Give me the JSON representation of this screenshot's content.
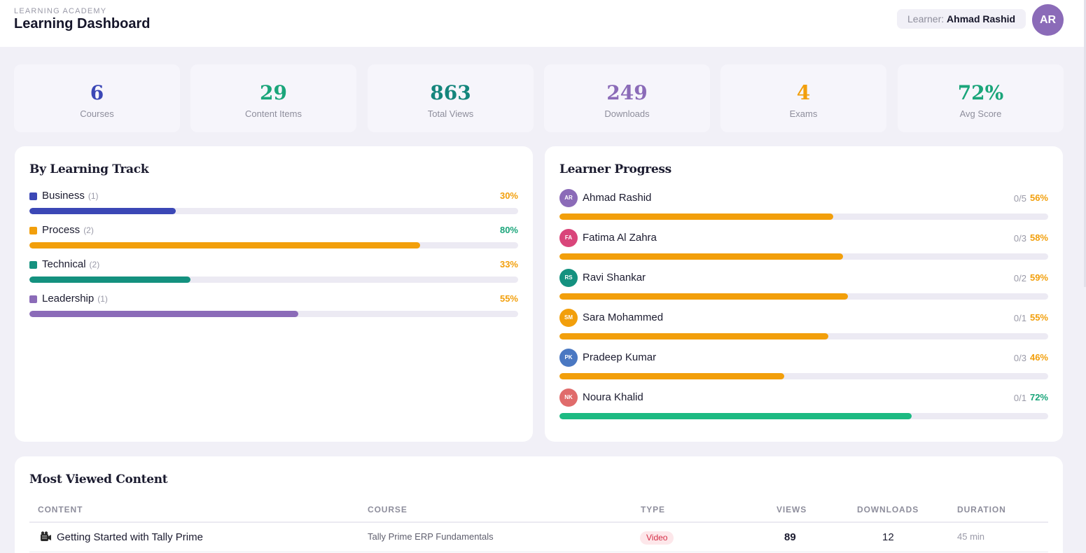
{
  "header": {
    "subtitle": "LEARNING ACADEMY",
    "title": "Learning Dashboard",
    "learner_label": "Learner:",
    "learner_name": "Ahmad Rashid",
    "avatar_initials": "AR"
  },
  "stats": [
    {
      "value": "6",
      "label": "Courses",
      "color": "#3b47b6"
    },
    {
      "value": "29",
      "label": "Content Items",
      "color": "#1aa57a"
    },
    {
      "value": "863",
      "label": "Total Views",
      "color": "#14857c"
    },
    {
      "value": "249",
      "label": "Downloads",
      "color": "#8b6bb8"
    },
    {
      "value": "4",
      "label": "Exams",
      "color": "#f29f0b"
    },
    {
      "value": "72%",
      "label": "Avg Score",
      "color": "#1aa57a"
    }
  ],
  "by_track": {
    "title": "By Learning Track",
    "tracks": [
      {
        "name": "Business",
        "count": "(1)",
        "pct_label": "30%",
        "fraction": 0.3,
        "color": "#3b47b6",
        "pct_color": "#f29f0b"
      },
      {
        "name": "Process",
        "count": "(2)",
        "pct_label": "80%",
        "fraction": 0.8,
        "color": "#f29f0b",
        "pct_color": "#1aa57a"
      },
      {
        "name": "Technical",
        "count": "(2)",
        "pct_label": "33%",
        "fraction": 0.33,
        "color": "#14917f",
        "pct_color": "#f29f0b"
      },
      {
        "name": "Leadership",
        "count": "(1)",
        "pct_label": "55%",
        "fraction": 0.55,
        "color": "#8b6bb8",
        "pct_color": "#f29f0b"
      }
    ]
  },
  "learner_progress": {
    "title": "Learner Progress",
    "learners": [
      {
        "initials": "AR",
        "name": "Ahmad Rashid",
        "fraction_label": "0/5",
        "pct_label": "56%",
        "fraction": 0.56,
        "avatar_color": "#8b6bb8",
        "bar_color": "#f29f0b",
        "pct_color": "#f29f0b"
      },
      {
        "initials": "FA",
        "name": "Fatima Al Zahra",
        "fraction_label": "0/3",
        "pct_label": "58%",
        "fraction": 0.58,
        "avatar_color": "#d9457a",
        "bar_color": "#f29f0b",
        "pct_color": "#f29f0b"
      },
      {
        "initials": "RS",
        "name": "Ravi Shankar",
        "fraction_label": "0/2",
        "pct_label": "59%",
        "fraction": 0.59,
        "avatar_color": "#14917f",
        "bar_color": "#f29f0b",
        "pct_color": "#f29f0b"
      },
      {
        "initials": "SM",
        "name": "Sara Mohammed",
        "fraction_label": "0/1",
        "pct_label": "55%",
        "fraction": 0.55,
        "avatar_color": "#f29f0b",
        "bar_color": "#f29f0b",
        "pct_color": "#f29f0b"
      },
      {
        "initials": "PK",
        "name": "Pradeep Kumar",
        "fraction_label": "0/3",
        "pct_label": "46%",
        "fraction": 0.46,
        "avatar_color": "#4a78c2",
        "bar_color": "#f29f0b",
        "pct_color": "#f29f0b"
      },
      {
        "initials": "NK",
        "name": "Noura Khalid",
        "fraction_label": "0/1",
        "pct_label": "72%",
        "fraction": 0.72,
        "avatar_color": "#e06b6b",
        "bar_color": "#1dba82",
        "pct_color": "#1aa57a"
      }
    ]
  },
  "most_viewed": {
    "title": "Most Viewed Content",
    "columns": [
      "CONTENT",
      "COURSE",
      "TYPE",
      "VIEWS",
      "DOWNLOADS",
      "DURATION"
    ],
    "rows": [
      {
        "content": "Getting Started with Tally Prime",
        "course": "Tally Prime ERP Fundamentals",
        "type": "Video",
        "views": "89",
        "downloads": "12",
        "duration": "45 min",
        "icon": "video-camera-icon"
      }
    ]
  }
}
